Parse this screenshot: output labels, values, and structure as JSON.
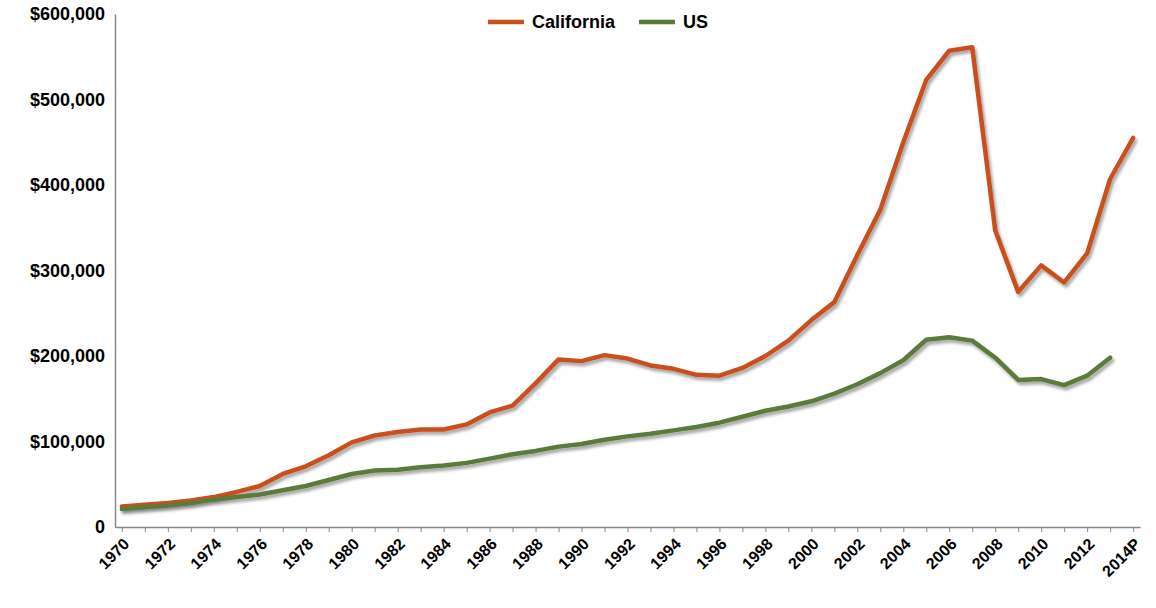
{
  "chart_data": {
    "type": "line",
    "categories": [
      "1970",
      null,
      "1972",
      null,
      "1974",
      null,
      "1976",
      null,
      "1978",
      null,
      "1980",
      null,
      "1982",
      null,
      "1984",
      null,
      "1986",
      null,
      "1988",
      null,
      "1990",
      null,
      "1992",
      null,
      "1994",
      null,
      "1996",
      null,
      "1998",
      null,
      "2000",
      null,
      "2002",
      null,
      "2004",
      null,
      "2006",
      null,
      "2008",
      null,
      "2010",
      null,
      "2012",
      null,
      "2014P"
    ],
    "series": [
      {
        "name": "California",
        "color": "#c9501c",
        "values": [
          24000,
          26000,
          28000,
          31000,
          35000,
          41000,
          48000,
          62000,
          71000,
          84000,
          99000,
          107000,
          111000,
          114000,
          114000,
          120000,
          134000,
          142000,
          168000,
          196000,
          194000,
          201000,
          197000,
          189000,
          185000,
          178000,
          177000,
          186000,
          200000,
          218000,
          242000,
          263000,
          318000,
          371000,
          450000,
          523000,
          557000,
          561000,
          347000,
          275000,
          306000,
          286000,
          320000,
          407000,
          455000
        ]
      },
      {
        "name": "US",
        "color": "#5b7a3a",
        "values": [
          21000,
          23000,
          25000,
          28000,
          32000,
          35000,
          38000,
          43000,
          48000,
          55000,
          62000,
          66000,
          67000,
          70000,
          72000,
          75000,
          80000,
          85000,
          89000,
          94000,
          97000,
          102000,
          106000,
          109000,
          113000,
          117000,
          122000,
          129000,
          136000,
          141000,
          147000,
          156000,
          167000,
          180000,
          195000,
          219000,
          222000,
          218000,
          198000,
          172000,
          173000,
          166000,
          177000,
          198000,
          null
        ]
      }
    ],
    "ylim": [
      0,
      600000
    ],
    "yticks": [
      0,
      {
        "value": 100000,
        "label": "$100,000"
      },
      {
        "value": 200000,
        "label": "$200,000"
      },
      {
        "value": 300000,
        "label": "$300,000"
      },
      {
        "value": 400000,
        "label": "$400,000"
      },
      {
        "value": 500000,
        "label": "$500,000"
      },
      {
        "value": 600000,
        "label": "$600,000"
      }
    ],
    "grid": false,
    "legend": "top"
  }
}
